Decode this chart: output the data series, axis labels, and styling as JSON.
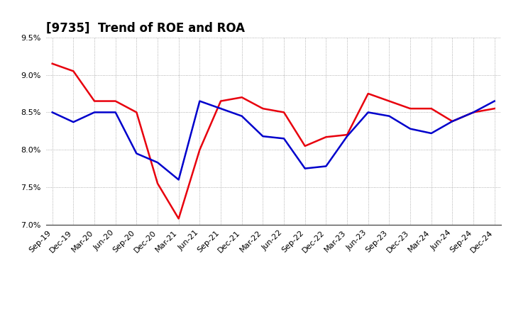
{
  "title": "[9735]  Trend of ROE and ROA",
  "x_labels": [
    "Sep-19",
    "Dec-19",
    "Mar-20",
    "Jun-20",
    "Sep-20",
    "Dec-20",
    "Mar-21",
    "Jun-21",
    "Sep-21",
    "Dec-21",
    "Mar-22",
    "Jun-22",
    "Sep-22",
    "Dec-22",
    "Mar-23",
    "Jun-23",
    "Sep-23",
    "Dec-23",
    "Mar-24",
    "Jun-24",
    "Sep-24",
    "Dec-24"
  ],
  "roe": [
    9.15,
    9.05,
    8.65,
    8.65,
    8.5,
    7.55,
    7.08,
    8.0,
    8.65,
    8.7,
    8.55,
    8.5,
    8.05,
    8.17,
    8.2,
    8.75,
    8.65,
    8.55,
    8.55,
    8.38,
    8.5,
    8.55
  ],
  "roa": [
    8.5,
    8.37,
    8.5,
    8.5,
    7.95,
    7.83,
    7.6,
    8.65,
    8.55,
    8.45,
    8.18,
    8.15,
    7.75,
    7.78,
    8.18,
    8.5,
    8.45,
    8.28,
    8.22,
    8.38,
    8.5,
    8.65
  ],
  "roe_color": "#e8000d",
  "roa_color": "#0000cc",
  "ylim_min": 7.0,
  "ylim_max": 9.5,
  "yticks": [
    7.0,
    7.5,
    8.0,
    8.5,
    9.0,
    9.5
  ],
  "background_color": "#ffffff",
  "grid_color": "#999999",
  "title_fontsize": 12,
  "legend_fontsize": 10,
  "tick_fontsize": 8,
  "linewidth": 1.8
}
